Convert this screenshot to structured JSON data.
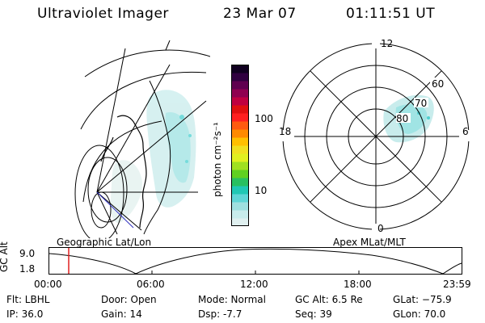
{
  "header": {
    "instrument": "Ultraviolet Imager",
    "date": "23 Mar 07",
    "time": "01:11:51  UT"
  },
  "colorbar": {
    "unit_label": "photon cm⁻²s⁻¹",
    "ticks": [
      "100",
      "10"
    ],
    "colors": [
      "#e0f0f0",
      "#c8ecec",
      "#9fe0e0",
      "#5fd6d6",
      "#20c8b4",
      "#28c060",
      "#60d020",
      "#a0e020",
      "#e0f020",
      "#f0e020",
      "#ffc000",
      "#ff8a00",
      "#ff5a10",
      "#ff2020",
      "#e01010",
      "#c00040",
      "#900050",
      "#600050",
      "#300040",
      "#100020"
    ]
  },
  "left_map": {
    "label": "Geographic Lat/Lon"
  },
  "polar": {
    "label": "Apex MLat/MLT",
    "mlt_labels": {
      "top": "12",
      "left": "18",
      "right": "6",
      "bottom": "0"
    },
    "lat_labels": [
      "60",
      "70",
      "80"
    ]
  },
  "timeline": {
    "ylabel": "GC Alt",
    "ytick_top": "9.0",
    "ytick_bottom": "1.8",
    "xticks": [
      "00:00",
      "06:00",
      "12:00",
      "18:00",
      "23:59"
    ],
    "marker_color": "#e02020"
  },
  "info": {
    "flt": "Flt: LBHL",
    "ip": "IP: 36.0",
    "door": "Door: Open",
    "gain": "Gain: 14",
    "mode": "Mode: Normal",
    "dsp": "Dsp:    -7.7",
    "gcalt": "GC Alt: 6.5 Re",
    "seq": "Seq: 39",
    "glat": "GLat:  −75.9",
    "glon": "GLon:  70.0"
  }
}
